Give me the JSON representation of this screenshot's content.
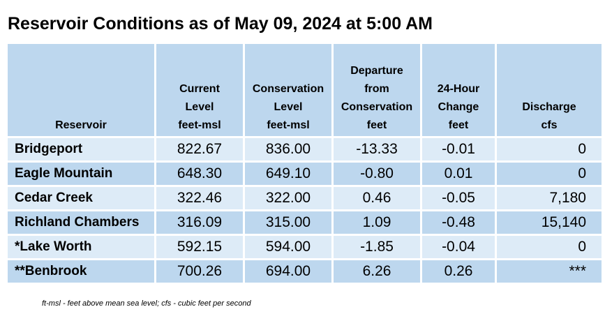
{
  "title": "Reservoir Conditions as of May 09, 2024 at 5:00 AM",
  "headers": [
    [
      "Reservoir"
    ],
    [
      "Current",
      "Level",
      "feet-msl"
    ],
    [
      "Conservation",
      "Level",
      "feet-msl"
    ],
    [
      "Departure",
      "from",
      "Conservation",
      "feet"
    ],
    [
      "24-Hour",
      "Change",
      "feet"
    ],
    [
      "Discharge",
      "cfs"
    ]
  ],
  "rows": [
    [
      "Bridgeport",
      "822.67",
      "836.00",
      "-13.33",
      "-0.01",
      "0"
    ],
    [
      "Eagle Mountain",
      "648.30",
      "649.10",
      "-0.80",
      "0.01",
      "0"
    ],
    [
      "Cedar Creek",
      "322.46",
      "322.00",
      "0.46",
      "-0.05",
      "7,180"
    ],
    [
      "Richland Chambers",
      "316.09",
      "315.00",
      "1.09",
      "-0.48",
      "15,140"
    ],
    [
      "*Lake Worth",
      "592.15",
      "594.00",
      "-1.85",
      "-0.04",
      "0"
    ],
    [
      "**Benbrook",
      "700.26",
      "694.00",
      "6.26",
      "0.26",
      "***"
    ]
  ],
  "footnote": "ft-msl - feet above mean sea level; cfs - cubic feet per second",
  "colors": {
    "header_bg": "#bdd7ee",
    "row_light": "#ddebf7",
    "row_dark": "#bdd7ee"
  }
}
